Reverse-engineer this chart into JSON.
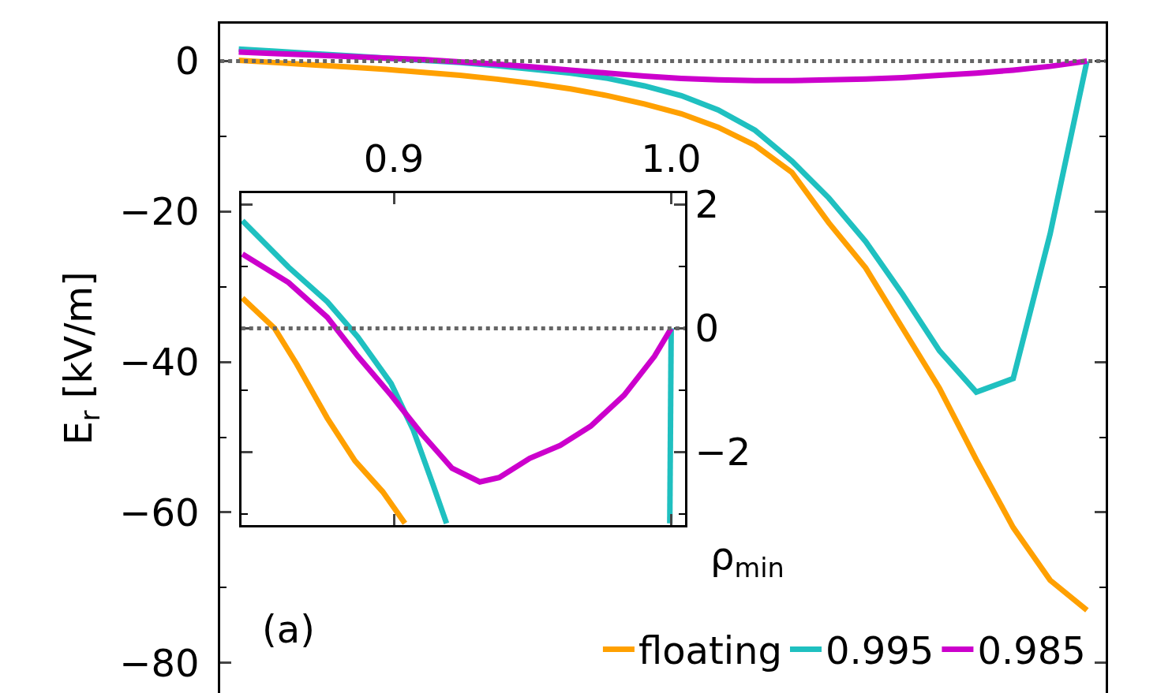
{
  "chart_data": [
    {
      "type": "line",
      "ylabel": "E$_{r}$ [kV/m]",
      "categories": [
        null,
        null,
        null,
        null,
        null,
        null,
        null,
        null,
        null,
        null,
        null,
        null,
        null,
        null,
        null,
        null,
        null,
        null,
        null,
        null,
        null,
        null,
        null,
        null
      ],
      "series": [
        {
          "name": "floating",
          "color": "#ffa000",
          "values": [
            0.1,
            -0.2,
            -0.5,
            -0.8,
            -1.1,
            -1.5,
            -1.9,
            -2.4,
            -3.0,
            -3.7,
            -4.6,
            -5.7,
            -7.0,
            -8.8,
            -11.2,
            -14.8,
            -21.5,
            -27.5,
            -35.5,
            -43.5,
            -53.0,
            -62.0,
            -69.0,
            -73.0
          ]
        },
        {
          "name": "0.995",
          "color": "#1fc0c0",
          "values": [
            1.6,
            1.3,
            1.0,
            0.7,
            0.4,
            0.1,
            -0.2,
            -0.6,
            -1.1,
            -1.6,
            -2.3,
            -3.3,
            -4.6,
            -6.5,
            -9.2,
            -13.3,
            -18.2,
            -24.0,
            -31.0,
            -38.5,
            -44.0,
            -42.2,
            -23.0,
            0.0
          ]
        },
        {
          "name": "0.985",
          "color": "#cc00cc",
          "values": [
            1.2,
            1.0,
            0.8,
            0.6,
            0.4,
            0.2,
            -0.1,
            -0.4,
            -0.8,
            -1.2,
            -1.6,
            -2.0,
            -2.3,
            -2.5,
            -2.6,
            -2.6,
            -2.5,
            -2.4,
            -2.2,
            -1.9,
            -1.6,
            -1.2,
            -0.7,
            0.0
          ]
        }
      ],
      "ylim": [
        -84,
        5
      ],
      "yticks": [
        0,
        -20,
        -40,
        -60,
        -80
      ],
      "tick_labels": "y",
      "legend": "bottom right",
      "ref_lines": [
        {
          "axis": "y",
          "value": 0,
          "color": "#666666",
          "line_style": "dotted"
        }
      ],
      "annotations": [
        "(a)"
      ]
    },
    {
      "type": "line",
      "xlabel": "ρ$_{min}$",
      "series": [
        {
          "color": "#ffa000",
          "x": [
            0.8454,
            0.857,
            0.865,
            0.876,
            0.886,
            0.896,
            0.904
          ],
          "values": [
            0.49,
            0.0,
            -0.58,
            -1.45,
            -2.14,
            -2.64,
            -3.15
          ]
        },
        {
          "color": "#1fc0c0",
          "x": [
            0.8454,
            0.862,
            0.876,
            0.887,
            0.899,
            0.907,
            0.914,
            0.919,
            0.95,
            0.9995,
            1.0
          ],
          "values": [
            1.74,
            0.99,
            0.43,
            -0.14,
            -0.89,
            -1.64,
            -2.51,
            -3.15,
            null,
            -3.15,
            0.0
          ]
        },
        {
          "color": "#cc00cc",
          "x": [
            0.8454,
            0.862,
            0.876,
            0.887,
            0.899,
            0.91,
            0.921,
            0.931,
            0.938,
            0.949,
            0.96,
            0.971,
            0.983,
            0.994,
            1.0
          ],
          "values": [
            1.2,
            0.74,
            0.18,
            -0.45,
            -1.08,
            -1.7,
            -2.26,
            -2.48,
            -2.41,
            -2.1,
            -1.89,
            -1.58,
            -1.08,
            -0.45,
            0.0
          ]
        }
      ],
      "xlim": [
        0.845,
        1.005
      ],
      "xticks": [
        0.9,
        {
          "value": 1.0,
          "label": "1.0"
        }
      ],
      "ylim": [
        -3.18,
        2.19
      ],
      "yticks": [
        2,
        0,
        -2
      ],
      "ref_lines": [
        {
          "axis": "y",
          "value": 0,
          "color": "#666666",
          "line_style": "dotted"
        }
      ]
    }
  ]
}
